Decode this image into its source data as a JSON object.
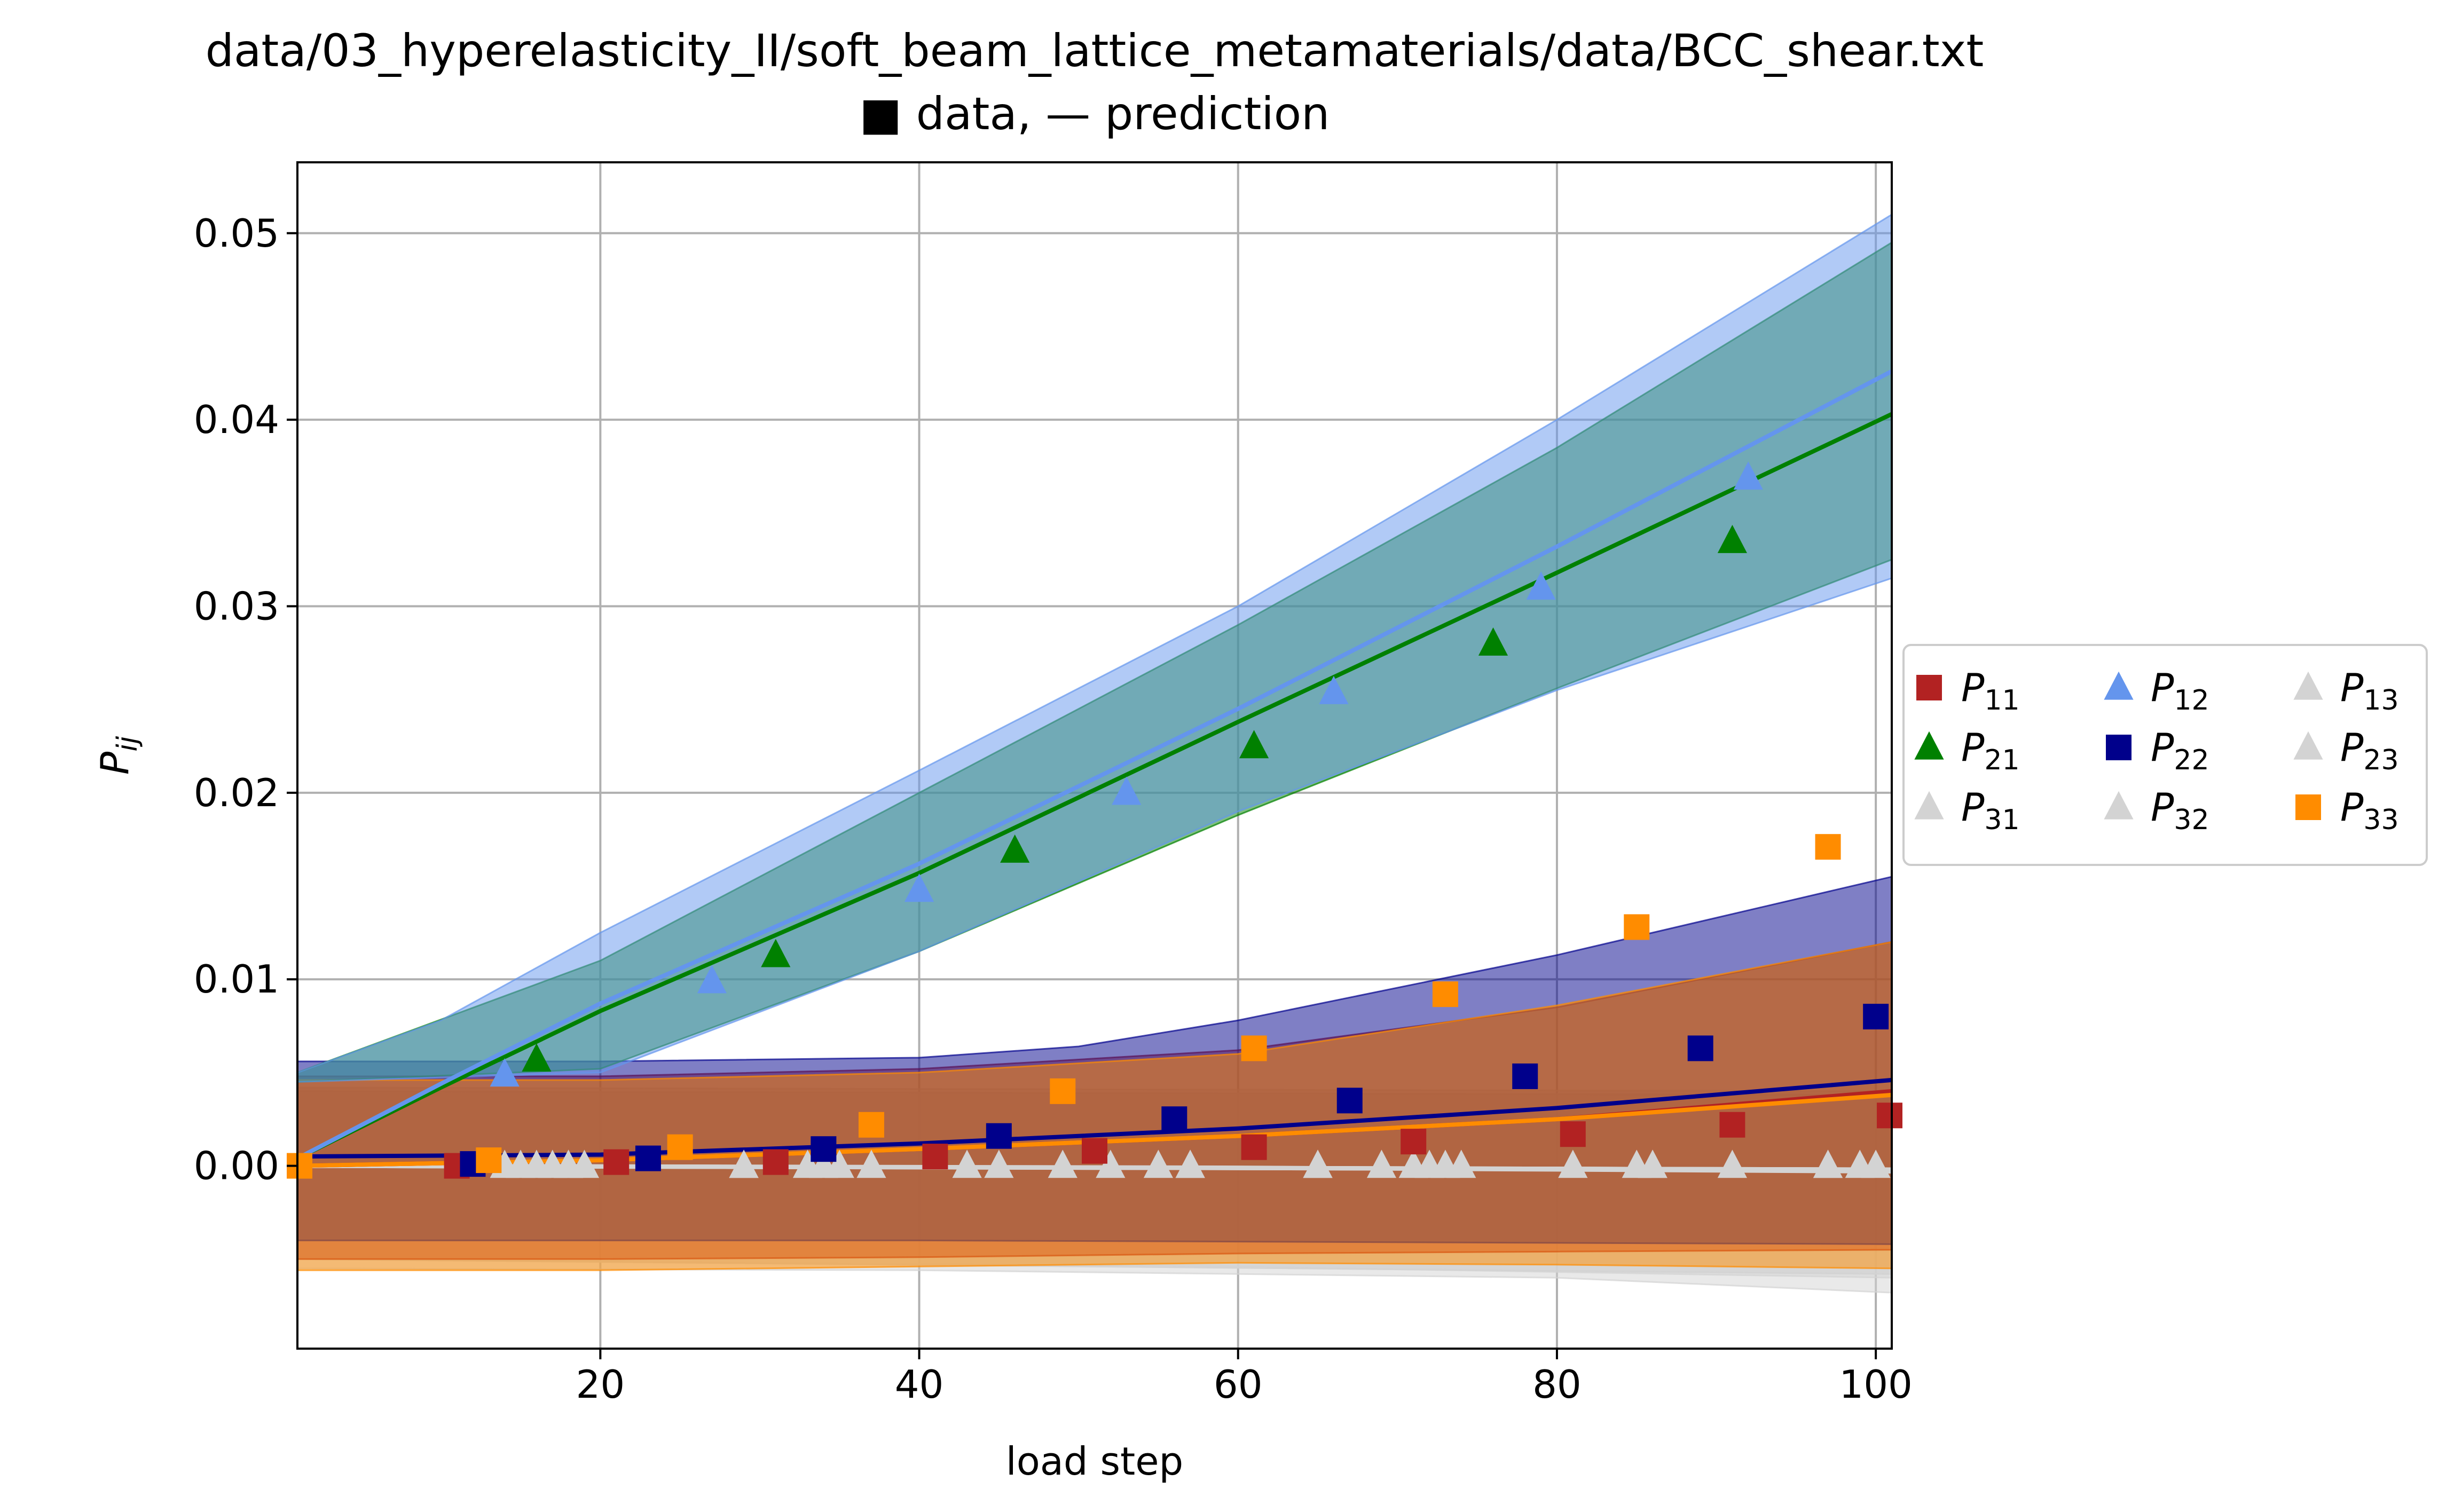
{
  "chart_data": {
    "type": "scatter",
    "title": "data/03_hyperelasticity_II/soft_beam_lattice_metamaterials/data/BCC_shear.txt",
    "subtitle": "■ data, — prediction",
    "xlabel": "load step",
    "ylabel": "P",
    "ylabel_sub": "ij",
    "xlim": [
      1,
      101
    ],
    "ylim": [
      -0.0098,
      0.0538
    ],
    "xticks": [
      20,
      40,
      60,
      80,
      100
    ],
    "yticks": [
      0.0,
      0.01,
      0.02,
      0.03,
      0.04,
      0.05
    ],
    "ytick_labels": [
      "0.00",
      "0.01",
      "0.02",
      "0.03",
      "0.04",
      "0.05"
    ],
    "grid": true,
    "legend_position": "right, outside plot",
    "legend_columns": 3,
    "series": [
      {
        "name": "P",
        "sub": "11",
        "color": "#b22222",
        "marker": "square",
        "points": [
          [
            11,
            0.0
          ],
          [
            21,
            0.0002
          ],
          [
            31,
            0.0002
          ],
          [
            41,
            0.0005
          ],
          [
            51,
            0.0008
          ],
          [
            61,
            0.001
          ],
          [
            71,
            0.0013
          ],
          [
            81,
            0.0017
          ],
          [
            91,
            0.0022
          ],
          [
            101,
            0.0027
          ]
        ],
        "pred_line": [
          [
            1,
            0.0
          ],
          [
            20,
            0.0003
          ],
          [
            40,
            0.0009
          ],
          [
            60,
            0.0016
          ],
          [
            80,
            0.0025
          ],
          [
            101,
            0.004
          ]
        ],
        "band_upper": [
          [
            1,
            0.0048
          ],
          [
            20,
            0.0048
          ],
          [
            40,
            0.0052
          ],
          [
            60,
            0.0062
          ],
          [
            80,
            0.0085
          ],
          [
            101,
            0.012
          ]
        ],
        "band_lower": [
          [
            1,
            -0.005
          ],
          [
            20,
            -0.005
          ],
          [
            40,
            -0.0049
          ],
          [
            60,
            -0.0047
          ],
          [
            80,
            -0.0046
          ],
          [
            101,
            -0.0045
          ]
        ]
      },
      {
        "name": "P",
        "sub": "12",
        "color": "#6495ed",
        "marker": "triangle",
        "points": [
          [
            14,
            0.0049
          ],
          [
            27,
            0.0099
          ],
          [
            40,
            0.0148
          ],
          [
            53,
            0.02
          ],
          [
            66,
            0.0254
          ],
          [
            79,
            0.031
          ],
          [
            92,
            0.0369
          ]
        ],
        "pred_line": [
          [
            1,
            0.0004
          ],
          [
            10,
            0.0044
          ],
          [
            20,
            0.0087
          ],
          [
            40,
            0.0162
          ],
          [
            60,
            0.0245
          ],
          [
            80,
            0.0332
          ],
          [
            101,
            0.0426
          ]
        ],
        "band_upper": [
          [
            1,
            0.005
          ],
          [
            10,
            0.0078
          ],
          [
            20,
            0.0125
          ],
          [
            40,
            0.0212
          ],
          [
            60,
            0.03
          ],
          [
            80,
            0.04
          ],
          [
            101,
            0.051
          ]
        ],
        "band_lower": [
          [
            1,
            0.0045
          ],
          [
            20,
            0.005
          ],
          [
            40,
            0.0115
          ],
          [
            60,
            0.019
          ],
          [
            80,
            0.0255
          ],
          [
            101,
            0.0315
          ]
        ]
      },
      {
        "name": "P",
        "sub": "13",
        "color": "#d3d3d3",
        "marker": "triangle",
        "points": [
          [
            14,
            0.0
          ],
          [
            19,
            0.0
          ],
          [
            29,
            0.0
          ],
          [
            37,
            0.0
          ],
          [
            49,
            0.0
          ],
          [
            57,
            0.0
          ],
          [
            69,
            0.0
          ],
          [
            73,
            0.0
          ],
          [
            86,
            0.0
          ],
          [
            99,
            0.0
          ]
        ],
        "pred_line": [
          [
            1,
            0.0
          ],
          [
            60,
            -0.0001
          ],
          [
            101,
            -0.0003
          ]
        ],
        "band_upper": [
          [
            1,
            0.0042
          ],
          [
            101,
            0.004
          ]
        ],
        "band_lower": [
          [
            1,
            -0.0055
          ],
          [
            40,
            -0.0056
          ],
          [
            60,
            -0.0058
          ],
          [
            80,
            -0.006
          ],
          [
            101,
            -0.0068
          ]
        ]
      },
      {
        "name": "P",
        "sub": "21",
        "color": "#008000",
        "marker": "triangle",
        "points": [
          [
            16,
            0.0057
          ],
          [
            31,
            0.0113
          ],
          [
            46,
            0.0169
          ],
          [
            61,
            0.0225
          ],
          [
            76,
            0.028
          ],
          [
            91,
            0.0335
          ]
        ],
        "pred_line": [
          [
            1,
            0.0004
          ],
          [
            10,
            0.0042
          ],
          [
            20,
            0.0083
          ],
          [
            40,
            0.0157
          ],
          [
            60,
            0.0238
          ],
          [
            80,
            0.0318
          ],
          [
            101,
            0.0403
          ]
        ],
        "band_upper": [
          [
            1,
            0.005
          ],
          [
            20,
            0.011
          ],
          [
            40,
            0.02
          ],
          [
            60,
            0.029
          ],
          [
            80,
            0.0385
          ],
          [
            101,
            0.0495
          ]
        ],
        "band_lower": [
          [
            1,
            0.0045
          ],
          [
            20,
            0.0052
          ],
          [
            40,
            0.0115
          ],
          [
            60,
            0.0188
          ],
          [
            80,
            0.0256
          ],
          [
            101,
            0.0325
          ]
        ]
      },
      {
        "name": "P",
        "sub": "22",
        "color": "#00008b",
        "marker": "square",
        "points": [
          [
            12,
            0.0001
          ],
          [
            23,
            0.0004
          ],
          [
            34,
            0.0009
          ],
          [
            45,
            0.0016
          ],
          [
            56,
            0.0025
          ],
          [
            67,
            0.0035
          ],
          [
            78,
            0.0048
          ],
          [
            89,
            0.0063
          ],
          [
            100,
            0.008
          ]
        ],
        "pred_line": [
          [
            1,
            0.0005
          ],
          [
            20,
            0.0006
          ],
          [
            40,
            0.0012
          ],
          [
            60,
            0.002
          ],
          [
            80,
            0.0031
          ],
          [
            101,
            0.0046
          ]
        ],
        "band_upper": [
          [
            1,
            0.0056
          ],
          [
            20,
            0.0056
          ],
          [
            40,
            0.0058
          ],
          [
            50,
            0.0064
          ],
          [
            60,
            0.0078
          ],
          [
            80,
            0.0113
          ],
          [
            101,
            0.0155
          ]
        ],
        "band_lower": [
          [
            1,
            -0.004
          ],
          [
            40,
            -0.004
          ],
          [
            101,
            -0.0042
          ]
        ]
      },
      {
        "name": "P",
        "sub": "23",
        "color": "#d3d3d3",
        "marker": "triangle",
        "points": [
          [
            16,
            0.0
          ],
          [
            18,
            0.0
          ],
          [
            33,
            0.0
          ],
          [
            43,
            0.0
          ],
          [
            52,
            0.0
          ],
          [
            65,
            0.0
          ],
          [
            71,
            0.0
          ],
          [
            81,
            0.0
          ],
          [
            85,
            0.0
          ],
          [
            97,
            0.0
          ]
        ],
        "pred_line": [
          [
            1,
            0.0
          ],
          [
            101,
            -0.0002
          ]
        ],
        "band_upper": [
          [
            1,
            0.004
          ],
          [
            101,
            0.0038
          ]
        ],
        "band_lower": [
          [
            1,
            -0.005
          ],
          [
            60,
            -0.0054
          ],
          [
            101,
            -0.006
          ]
        ]
      },
      {
        "name": "P",
        "sub": "31",
        "color": "#d3d3d3",
        "marker": "triangle",
        "points": [
          [
            17,
            0.0
          ],
          [
            29,
            0.0
          ],
          [
            35,
            0.0
          ],
          [
            55,
            0.0
          ],
          [
            65,
            0.0
          ],
          [
            72,
            0.0
          ],
          [
            91,
            0.0
          ],
          [
            100,
            0.0
          ]
        ],
        "pred_line": [
          [
            1,
            0.0
          ],
          [
            101,
            -0.0002
          ]
        ],
        "band_upper": [
          [
            1,
            0.004
          ],
          [
            101,
            0.0038
          ]
        ],
        "band_lower": [
          [
            1,
            -0.005
          ],
          [
            101,
            -0.0058
          ]
        ]
      },
      {
        "name": "P",
        "sub": "32",
        "color": "#d3d3d3",
        "marker": "triangle",
        "points": [
          [
            15,
            0.0
          ],
          [
            18,
            0.0
          ],
          [
            34,
            0.0
          ],
          [
            45,
            0.0
          ],
          [
            57,
            0.0
          ],
          [
            74,
            0.0
          ],
          [
            86,
            0.0
          ],
          [
            97,
            0.0
          ]
        ],
        "pred_line": [
          [
            1,
            0.0
          ],
          [
            101,
            -0.0002
          ]
        ],
        "band_upper": [
          [
            1,
            0.004
          ],
          [
            101,
            0.0038
          ]
        ],
        "band_lower": [
          [
            1,
            -0.005
          ],
          [
            101,
            -0.0058
          ]
        ]
      },
      {
        "name": "P",
        "sub": "33",
        "color": "#ff8c00",
        "marker": "square",
        "points": [
          [
            1,
            0.0
          ],
          [
            13,
            0.0003
          ],
          [
            25,
            0.001
          ],
          [
            37,
            0.0022
          ],
          [
            49,
            0.004
          ],
          [
            61,
            0.0063
          ],
          [
            73,
            0.0092
          ],
          [
            85,
            0.0128
          ],
          [
            97,
            0.0171
          ]
        ],
        "pred_line": [
          [
            1,
            0.0
          ],
          [
            20,
            0.0003
          ],
          [
            40,
            0.0009
          ],
          [
            60,
            0.0016
          ],
          [
            80,
            0.0025
          ],
          [
            101,
            0.0038
          ]
        ],
        "band_upper": [
          [
            1,
            0.0046
          ],
          [
            20,
            0.0046
          ],
          [
            40,
            0.005
          ],
          [
            60,
            0.006
          ],
          [
            80,
            0.0086
          ],
          [
            101,
            0.012
          ]
        ],
        "band_lower": [
          [
            1,
            -0.0056
          ],
          [
            20,
            -0.0056
          ],
          [
            40,
            -0.0054
          ],
          [
            60,
            -0.0052
          ],
          [
            80,
            -0.0053
          ],
          [
            101,
            -0.0055
          ]
        ]
      }
    ]
  }
}
